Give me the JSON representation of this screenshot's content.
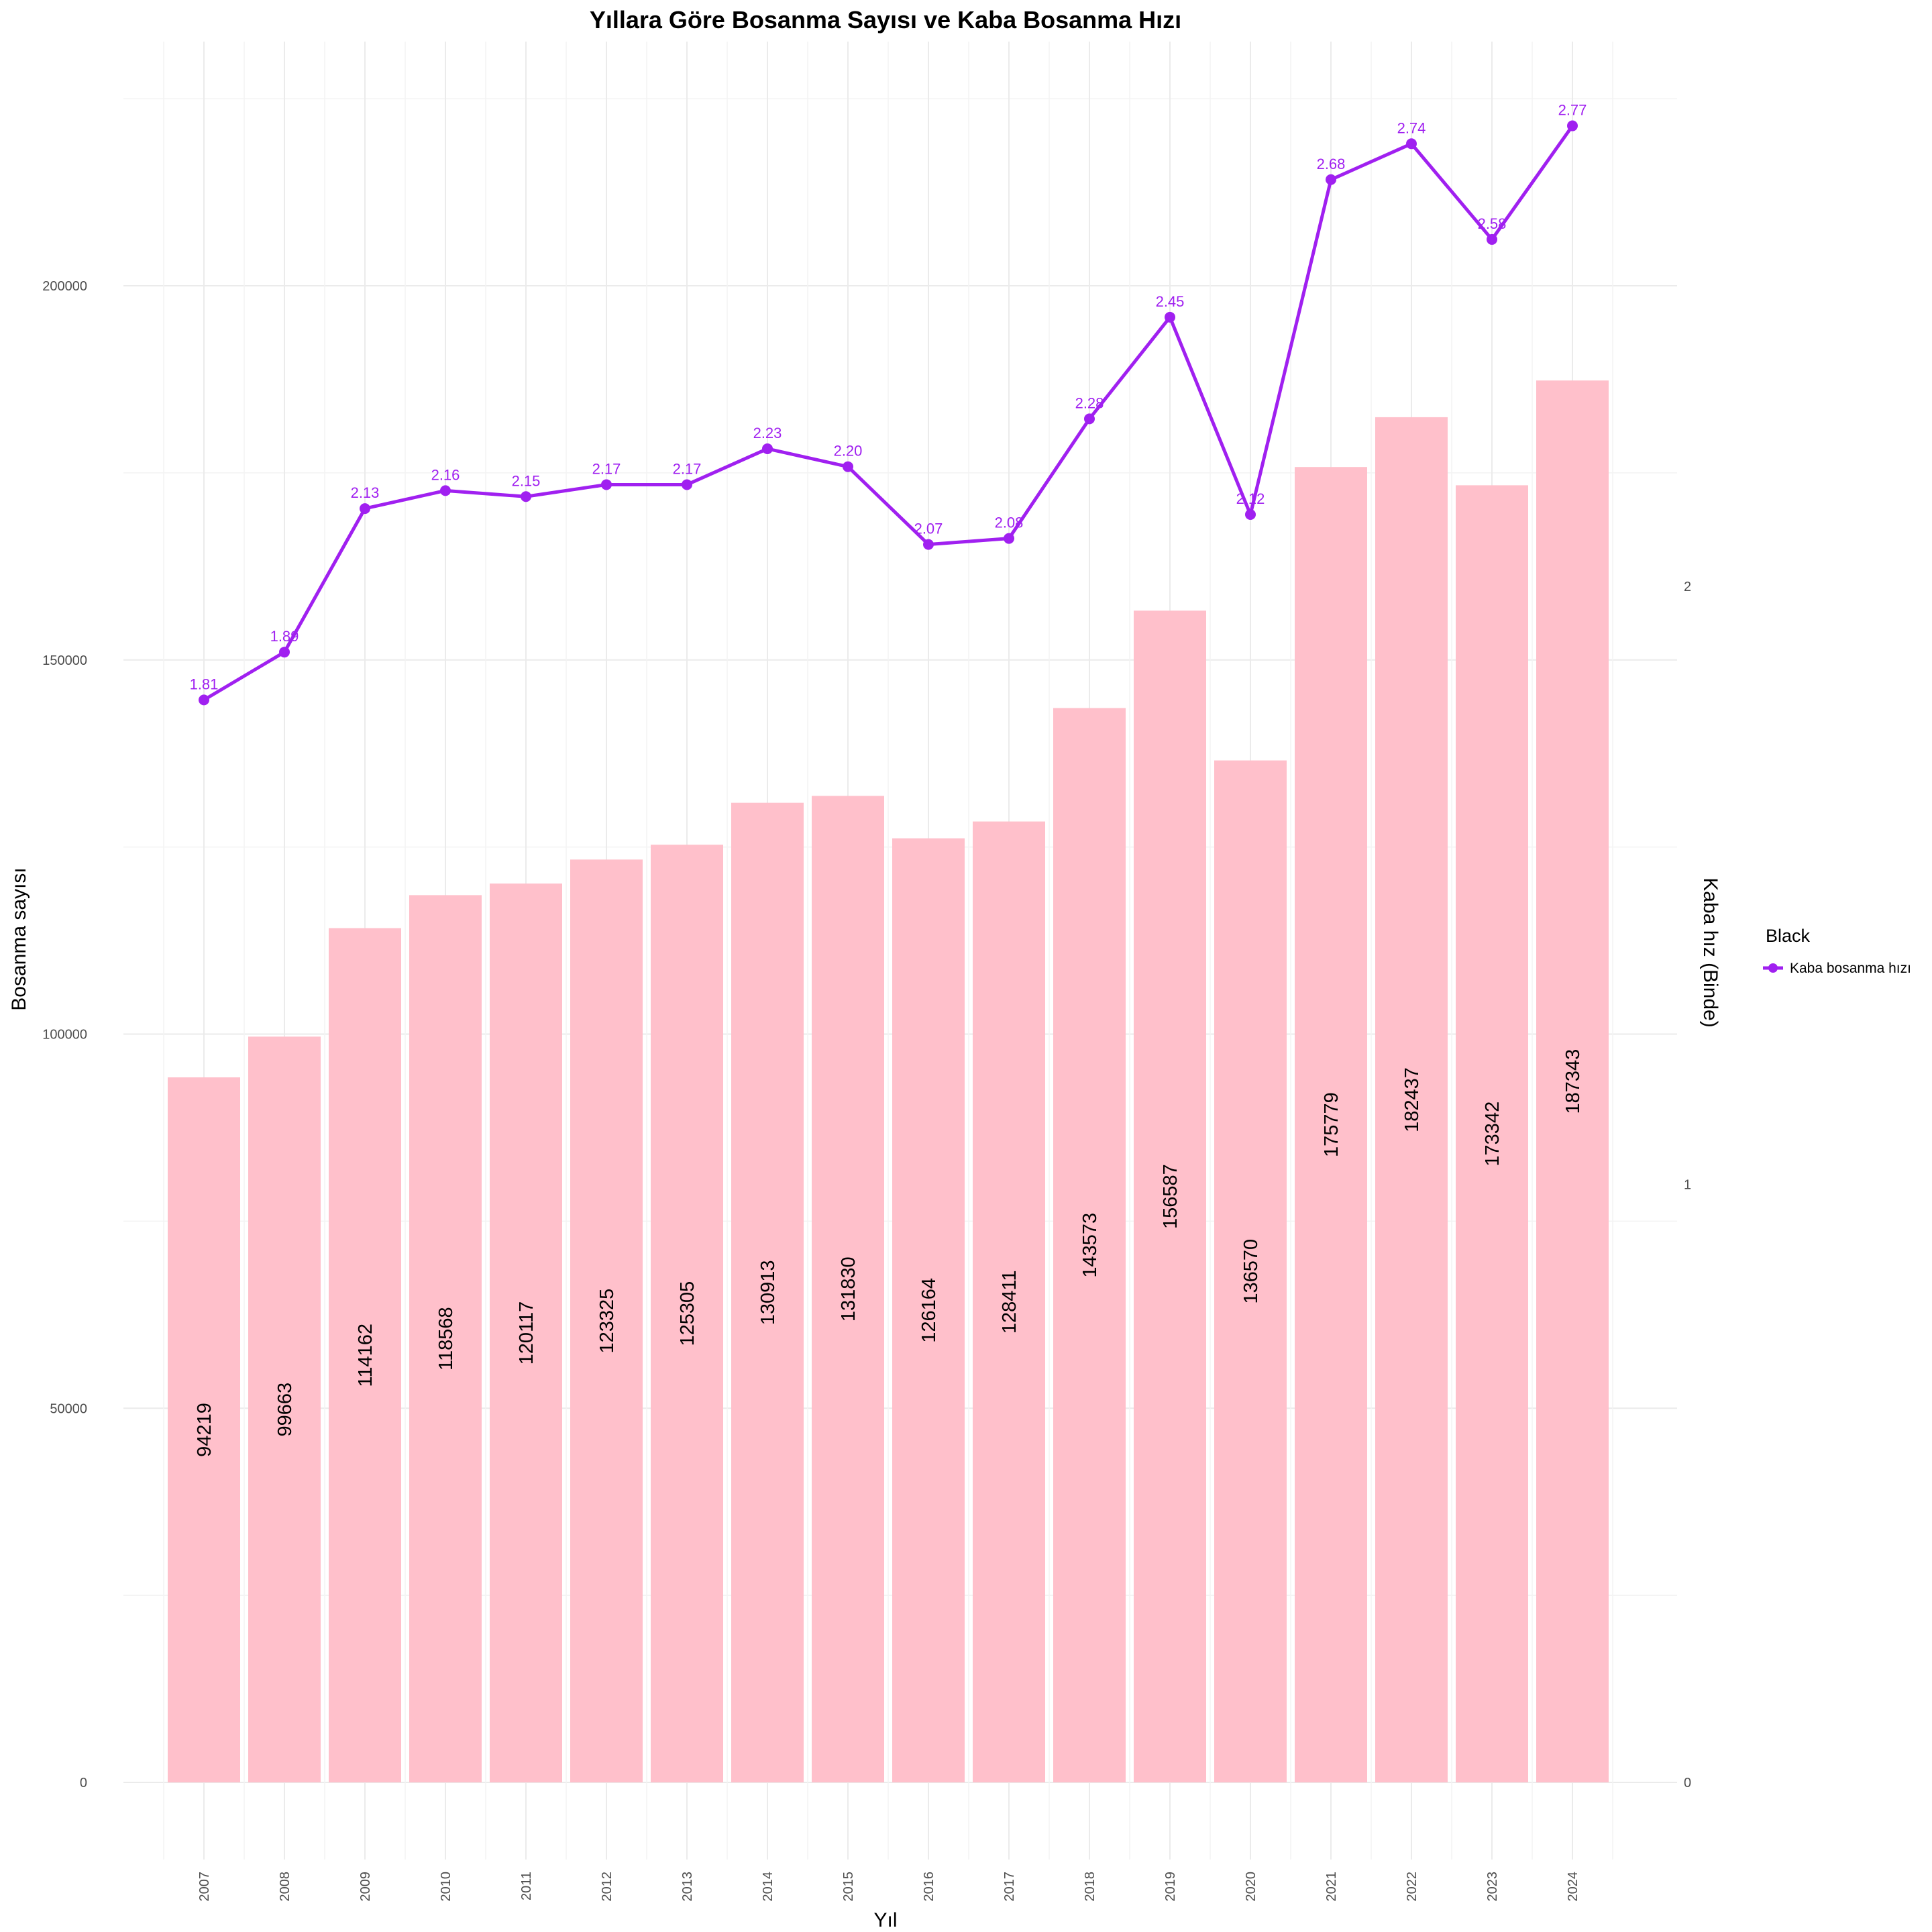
{
  "chart_data": {
    "type": "bar",
    "title": "Yıllara Göre Bosanma Sayısı ve Kaba Bosanma Hızı",
    "xlabel": "Yıl",
    "ylabel": "Bosanma sayısı",
    "y2label": "Kaba hız (Binde)",
    "categories": [
      "2007",
      "2008",
      "2009",
      "2010",
      "2011",
      "2012",
      "2013",
      "2014",
      "2015",
      "2016",
      "2017",
      "2018",
      "2019",
      "2020",
      "2021",
      "2022",
      "2023",
      "2024"
    ],
    "ylim": [
      0,
      235000
    ],
    "y_ticks": [
      0,
      50000,
      100000,
      150000,
      200000
    ],
    "y2lim": [
      0,
      2.98
    ],
    "y2_ticks": [
      0,
      1,
      2
    ],
    "grid": true,
    "series": [
      {
        "type": "bar",
        "axis": "left",
        "values": [
          94219,
          99663,
          114162,
          118568,
          120117,
          123325,
          125305,
          130913,
          131830,
          126164,
          128411,
          143573,
          156587,
          136570,
          175779,
          182437,
          173342,
          187343
        ],
        "labels": [
          "94219",
          "99663",
          "114162",
          "118568",
          "120117",
          "123325",
          "125305",
          "130913",
          "131830",
          "126164",
          "128411",
          "143573",
          "156587",
          "136570",
          "175779",
          "182437",
          "173342",
          "187343"
        ],
        "color": "#FFC0CB"
      },
      {
        "type": "line",
        "axis": "right",
        "name": "Kaba bosanma hızı",
        "values": [
          1.81,
          1.89,
          2.13,
          2.16,
          2.15,
          2.17,
          2.17,
          2.23,
          2.2,
          2.07,
          2.08,
          2.28,
          2.45,
          2.12,
          2.68,
          2.74,
          2.58,
          2.77
        ],
        "labels": [
          "1.81",
          "1.89",
          "2.13",
          "2.16",
          "2.15",
          "2.17",
          "2.17",
          "2.23",
          "2.20",
          "2.07",
          "2.08",
          "2.28",
          "2.45",
          "2.12",
          "2.68",
          "2.74",
          "2.58",
          "2.77"
        ],
        "color": "#A020F0"
      }
    ],
    "legend": {
      "title": "Black",
      "placement": "right"
    }
  }
}
